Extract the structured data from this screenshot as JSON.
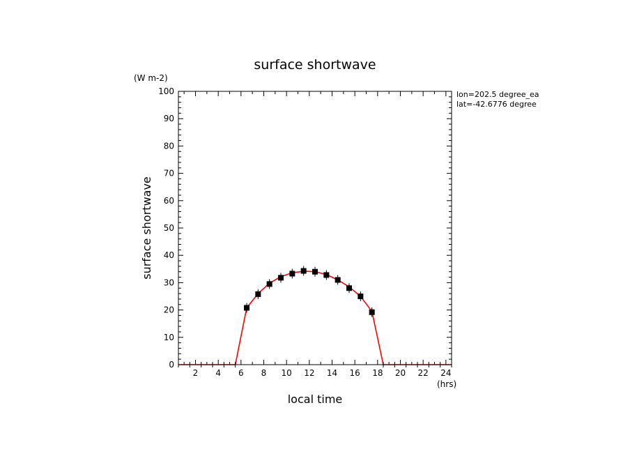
{
  "chart_data": {
    "type": "line",
    "title": "surface shortwave",
    "xlabel": "local time",
    "ylabel": "surface shortwave",
    "x_unit": "(hrs)",
    "y_unit": "(W m-2)",
    "xlim": [
      0.5,
      24.5
    ],
    "ylim": [
      0,
      100
    ],
    "x_ticks": [
      2,
      4,
      6,
      8,
      10,
      12,
      14,
      16,
      18,
      20,
      22,
      24
    ],
    "y_ticks": [
      0,
      10,
      20,
      30,
      40,
      50,
      60,
      70,
      80,
      90,
      100
    ],
    "grid": false,
    "annotations": [
      "lon=202.5 degree_ea",
      "lat=-42.6776 degree"
    ],
    "series": [
      {
        "kind": "line",
        "color": "#ff0000",
        "x": [
          0.5,
          1.5,
          2.5,
          3.5,
          4.5,
          5.5,
          6.5,
          7.5,
          8.5,
          9.5,
          10.5,
          11.5,
          12.5,
          13.5,
          14.5,
          15.5,
          16.5,
          17.5,
          18.5,
          19.5,
          20.5,
          21.5,
          22.5,
          23.5,
          24.5
        ],
        "y": [
          0,
          0,
          0,
          0,
          0,
          0,
          20.8,
          26.0,
          29.8,
          32.2,
          33.6,
          34.2,
          34.0,
          33.0,
          31.0,
          28.5,
          25.0,
          19.5,
          0,
          0,
          0,
          0,
          0,
          0,
          0
        ]
      },
      {
        "kind": "points",
        "color": "#000000",
        "x": [
          6.5,
          7.5,
          8.5,
          9.5,
          10.5,
          11.5,
          12.5,
          13.5,
          14.5,
          15.5,
          16.5,
          17.5
        ],
        "y": [
          20.8,
          25.8,
          29.5,
          31.8,
          33.3,
          34.3,
          34.0,
          32.8,
          31.0,
          28.0,
          25.0,
          19.2
        ]
      }
    ]
  }
}
